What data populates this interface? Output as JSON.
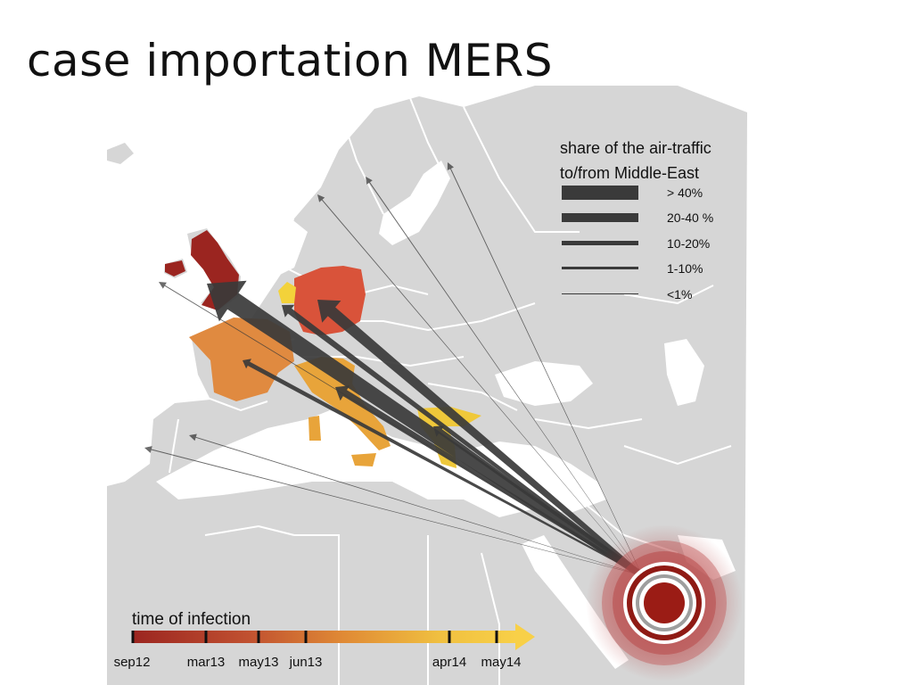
{
  "title": "case importation MERS",
  "legend": {
    "title_line1": "share of the air-traffic",
    "title_line2": "to/from Middle-East",
    "items": [
      {
        "label": "> 40%"
      },
      {
        "label": "20-40 %"
      },
      {
        "label": "10-20%"
      },
      {
        "label": "1-10%"
      },
      {
        "label": "<1%"
      }
    ]
  },
  "timeline": {
    "title": "time of infection",
    "ticks": [
      "sep12",
      "mar13",
      "may13",
      "jun13",
      "apr14",
      "may14"
    ],
    "gradient": [
      "#9b2520",
      "#c05030",
      "#e08a35",
      "#f0c040",
      "#f8d048"
    ]
  },
  "colors": {
    "land": "#d6d6d6",
    "border": "#ffffff",
    "arrow": "#3a3a3a",
    "source_red": "#9b1c15",
    "uk": "#9b2520",
    "germany": "#d9533a",
    "france": "#e08a40",
    "italy": "#e8a43a",
    "netherlands": "#f3d23a",
    "greece": "#efc83a"
  },
  "source_icon": "outbreak-target-icon"
}
